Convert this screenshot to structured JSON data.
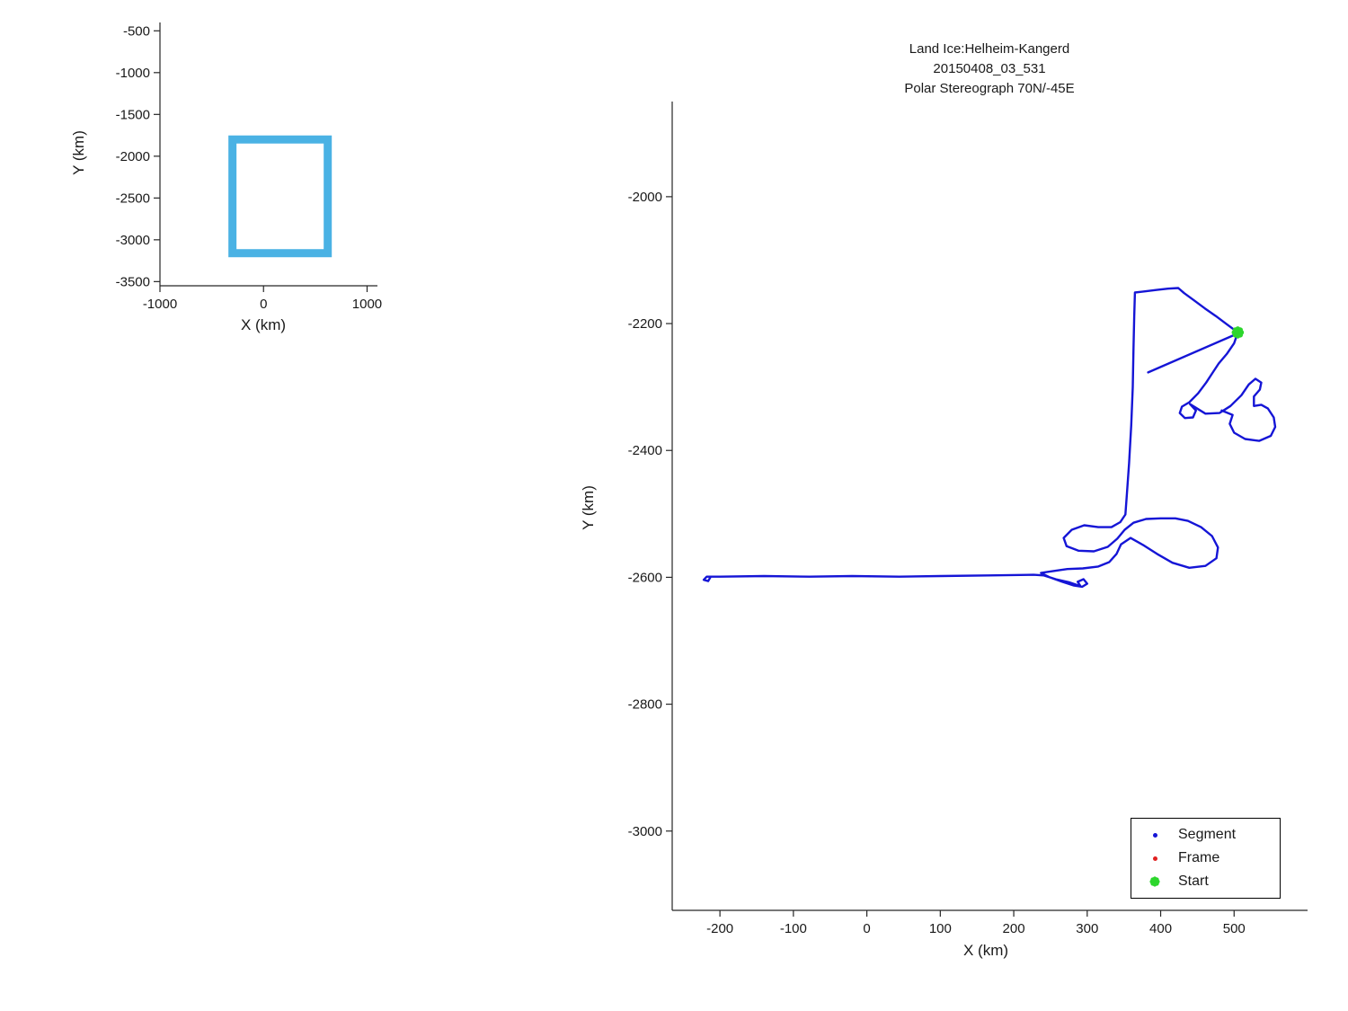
{
  "chart_data": [
    {
      "id": "overview-inset",
      "type": "line",
      "xlabel": "X (km)",
      "ylabel": "Y (km)",
      "xlim": [
        -1000,
        1100
      ],
      "ylim": [
        -3550,
        -400
      ],
      "xticks": [
        -1000,
        0,
        1000
      ],
      "yticks": [
        -500,
        -1000,
        -1500,
        -2000,
        -2500,
        -3000,
        -3500
      ],
      "grid": false,
      "bbox_rect": {
        "x_min": -300,
        "x_max": 620,
        "y_min": -3160,
        "y_max": -1800,
        "color": "#4ab2e4",
        "stroke_width_px": 9
      }
    },
    {
      "id": "flight-track",
      "type": "scatter",
      "title": "Land Ice:Helheim-Kangerd",
      "subtitle1": "20150408_03_531",
      "subtitle2": "Polar Stereograph 70N/-45E",
      "xlabel": "X (km)",
      "ylabel": "Y (km)",
      "xlim": [
        -265,
        600
      ],
      "ylim": [
        -3125,
        -1850
      ],
      "xticks": [
        -200,
        -100,
        0,
        100,
        200,
        300,
        400,
        500
      ],
      "yticks": [
        -2000,
        -2200,
        -2400,
        -2600,
        -2800,
        -3000
      ],
      "grid": false,
      "segment_color": "#1515d6",
      "frame_color": "#e02020",
      "start_color": "#2dd62d",
      "start_point": [
        505,
        -2214
      ],
      "legend": {
        "position": "bottom-right",
        "items": [
          {
            "label": "Segment",
            "marker": "dot",
            "color": "#1515d6"
          },
          {
            "label": "Frame",
            "marker": "dot",
            "color": "#e02020"
          },
          {
            "label": "Start",
            "marker": "burst",
            "color": "#2dd62d"
          }
        ]
      },
      "paths": {
        "main": [
          [
            505,
            -2214
          ],
          [
            490,
            -2201
          ],
          [
            475,
            -2188
          ],
          [
            460,
            -2176
          ],
          [
            445,
            -2163
          ],
          [
            432,
            -2152
          ],
          [
            424,
            -2144
          ],
          [
            410,
            -2145
          ],
          [
            395,
            -2147
          ],
          [
            380,
            -2149
          ],
          [
            365,
            -2151
          ],
          [
            364,
            -2190
          ],
          [
            363,
            -2240
          ],
          [
            362,
            -2300
          ],
          [
            360,
            -2360
          ],
          [
            357,
            -2420
          ],
          [
            354,
            -2470
          ],
          [
            352,
            -2501
          ],
          [
            345,
            -2513
          ],
          [
            333,
            -2521
          ],
          [
            315,
            -2521
          ],
          [
            296,
            -2518
          ],
          [
            279,
            -2525
          ],
          [
            268,
            -2538
          ],
          [
            272,
            -2551
          ],
          [
            288,
            -2558
          ],
          [
            309,
            -2559
          ],
          [
            328,
            -2552
          ],
          [
            341,
            -2539
          ],
          [
            351,
            -2525
          ],
          [
            363,
            -2514
          ],
          [
            380,
            -2508
          ],
          [
            400,
            -2507
          ],
          [
            420,
            -2507
          ],
          [
            437,
            -2511
          ],
          [
            455,
            -2521
          ],
          [
            470,
            -2535
          ],
          [
            478,
            -2553
          ],
          [
            476,
            -2570
          ],
          [
            461,
            -2582
          ],
          [
            439,
            -2585
          ],
          [
            416,
            -2577
          ],
          [
            395,
            -2563
          ],
          [
            376,
            -2549
          ],
          [
            359,
            -2538
          ],
          [
            346,
            -2548
          ],
          [
            340,
            -2563
          ],
          [
            330,
            -2576
          ],
          [
            315,
            -2583
          ],
          [
            294,
            -2586
          ],
          [
            273,
            -2587
          ],
          [
            254,
            -2590
          ],
          [
            237,
            -2593
          ],
          [
            249,
            -2600
          ],
          [
            266,
            -2607
          ],
          [
            282,
            -2613
          ],
          [
            293,
            -2615
          ],
          [
            300,
            -2610
          ],
          [
            295,
            -2603
          ],
          [
            287,
            -2607
          ],
          [
            291,
            -2614
          ],
          [
            276,
            -2608
          ],
          [
            257,
            -2603
          ],
          [
            241,
            -2597
          ],
          [
            227,
            -2596
          ],
          [
            166,
            -2597
          ],
          [
            100,
            -2598
          ],
          [
            44,
            -2599
          ],
          [
            -20,
            -2598
          ],
          [
            -78,
            -2599
          ],
          [
            -140,
            -2598
          ],
          [
            -200,
            -2599
          ],
          [
            -218,
            -2599
          ],
          [
            -222,
            -2604
          ],
          [
            -216,
            -2606
          ],
          [
            -213,
            -2600
          ]
        ],
        "loops": [
          [
            505,
            -2214
          ],
          [
            500,
            -2231
          ],
          [
            490,
            -2248
          ],
          [
            479,
            -2263
          ],
          [
            471,
            -2277
          ],
          [
            462,
            -2293
          ],
          [
            451,
            -2310
          ],
          [
            439,
            -2324
          ],
          [
            429,
            -2331
          ],
          [
            426,
            -2341
          ],
          [
            433,
            -2349
          ],
          [
            444,
            -2348
          ],
          [
            448,
            -2337
          ],
          [
            440,
            -2327
          ],
          [
            461,
            -2342
          ],
          [
            480,
            -2341
          ],
          [
            495,
            -2330
          ],
          [
            510,
            -2313
          ],
          [
            520,
            -2296
          ],
          [
            529,
            -2287
          ],
          [
            537,
            -2293
          ],
          [
            535,
            -2304
          ],
          [
            527,
            -2315
          ],
          [
            527,
            -2330
          ],
          [
            537,
            -2328
          ],
          [
            546,
            -2334
          ],
          [
            554,
            -2348
          ],
          [
            556,
            -2363
          ],
          [
            550,
            -2377
          ],
          [
            534,
            -2385
          ],
          [
            515,
            -2382
          ],
          [
            500,
            -2372
          ],
          [
            494,
            -2358
          ],
          [
            498,
            -2344
          ],
          [
            483,
            -2337
          ]
        ],
        "chord": [
          [
            383,
            -2277
          ],
          [
            502,
            -2217
          ]
        ]
      }
    }
  ]
}
